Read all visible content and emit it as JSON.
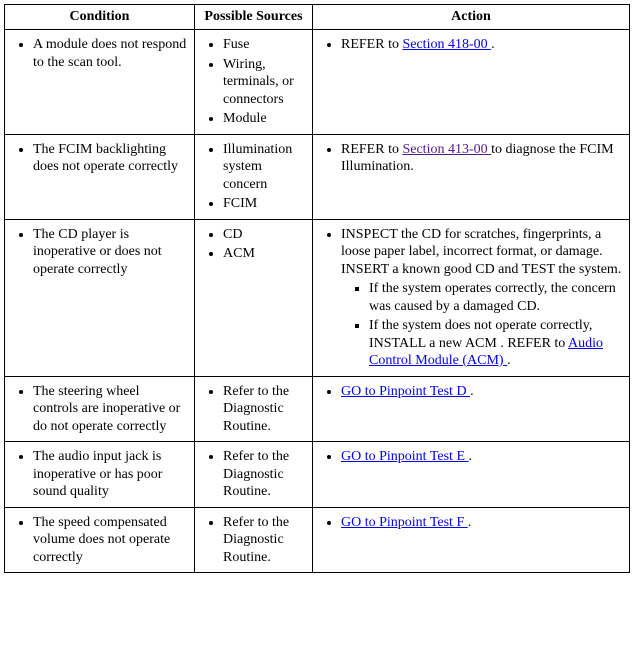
{
  "headers": {
    "condition": "Condition",
    "sources": "Possible Sources",
    "action": "Action"
  },
  "rows": [
    {
      "condition": "A module does not respond to the scan tool.",
      "sources": [
        "Fuse",
        "Wiring, terminals, or connectors",
        "Module"
      ],
      "action_pre": "REFER to ",
      "action_link": "Section 418-00 ",
      "action_post": ".",
      "link_visited": false
    },
    {
      "condition": "The FCIM backlighting does not operate correctly",
      "sources": [
        "Illumination system concern",
        "FCIM"
      ],
      "action_pre": "REFER to ",
      "action_link": "Section 413-00 ",
      "action_post": "to diagnose the FCIM Illumination.",
      "link_visited": true
    },
    {
      "condition": "The CD player is inoperative or does not operate correctly",
      "sources": [
        "CD",
        "ACM"
      ],
      "cd_main": "INSPECT the CD for scratches, fingerprints, a loose paper label, incorrect format, or damage. INSERT a known good CD and TEST the system.",
      "cd_sub1": "If the system operates correctly, the concern was caused by a damaged CD.",
      "cd_sub2_pre": "If the system does not operate correctly, INSTALL a new ACM . REFER to ",
      "cd_sub2_link": "Audio Control Module (ACM) ",
      "cd_sub2_post": "."
    },
    {
      "condition": "The steering wheel controls are inoperative or do not operate correctly",
      "sources": [
        "Refer to the Diagnostic Routine."
      ],
      "action_pre": "",
      "action_link": "GO to Pinpoint Test D ",
      "action_post": ".",
      "link_visited": false
    },
    {
      "condition": "The audio input jack is inoperative or has poor sound quality",
      "sources": [
        "Refer to the Diagnostic Routine."
      ],
      "action_pre": "",
      "action_link": "GO to Pinpoint Test E ",
      "action_post": ".",
      "link_visited": false
    },
    {
      "condition": "The speed compensated volume does not operate correctly",
      "sources": [
        "Refer to the Diagnostic Routine."
      ],
      "action_pre": "",
      "action_link": "GO to Pinpoint Test F ",
      "action_post": ".",
      "link_visited": false
    }
  ]
}
